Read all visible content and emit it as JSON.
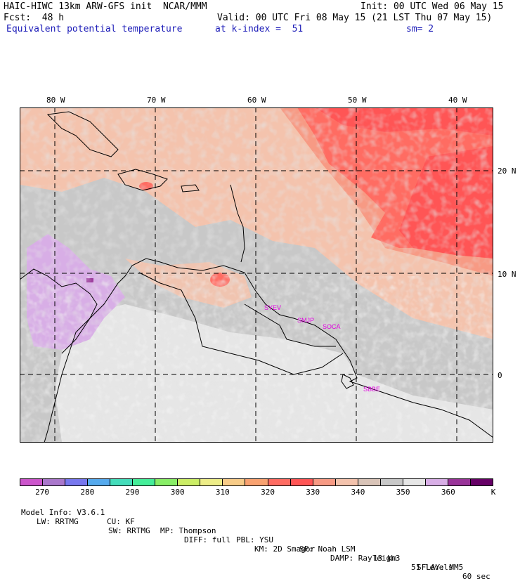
{
  "header": {
    "title_left": "HAIC-HIWC 13km ARW-GFS init  NCAR/MMM",
    "fcst": "Fcst:  48 h",
    "init": "Init: 00 UTC Wed 06 May 15",
    "valid": "Valid: 00 UTC Fri 08 May 15 (21 LST Thu 07 May 15)",
    "field": "Equivalent potential temperature",
    "level": "at k-index =  51",
    "smooth": "sm= 2"
  },
  "colors": {
    "field_label": "#1c1cb8",
    "city_label": "#e000e0",
    "land_base": "#e6e6e6",
    "ocean_base": "#bfbfbf",
    "warm_band": "#f4c3ad",
    "hot": "#ff6c62",
    "hotter": "#ff5555",
    "purple_region": "#d8aee6"
  },
  "axes": {
    "lon_labels": [
      "80 W",
      "70 W",
      "60 W",
      "50 W",
      "40 W"
    ],
    "lat_labels": [
      "20 N",
      "10 N",
      "0"
    ]
  },
  "map_labels": [
    {
      "name": "SYEV",
      "lon": -58.2,
      "lat": 6.5
    },
    {
      "name": "SMJP",
      "lon": -55.2,
      "lat": 5.5
    },
    {
      "name": "SOCA",
      "lon": -52.4,
      "lat": 4.8
    },
    {
      "name": "SBBE",
      "lon": -48.5,
      "lat": -1.4
    }
  ],
  "colorbar": {
    "colors": [
      "#cc55cc",
      "#aa77cc",
      "#7777ee",
      "#55aaee",
      "#44ddbb",
      "#44ee99",
      "#88ee66",
      "#ccee66",
      "#eeee88",
      "#f8cc88",
      "#f9a270",
      "#ff6c62",
      "#ff5555",
      "#f79a84",
      "#f4c3ad",
      "#d9c4b8",
      "#c8c8c8",
      "#e6e6e6",
      "#d8aee6",
      "#993399",
      "#660066"
    ],
    "labels": [
      "270",
      "280",
      "290",
      "300",
      "310",
      "320",
      "330",
      "340",
      "350",
      "360"
    ],
    "unit": "K"
  },
  "model_info": {
    "line1": [
      "Model Info: V3.6.1",
      "CU: KF",
      "MP: Thompson",
      "PBL: YSU",
      "SF: Noah LSM",
      "13 km",
      "51 levels",
      "60 sec"
    ],
    "line2": [
      "LW: RRTMG",
      "SW: RRTMG",
      "DIFF: full",
      "KM: 2D Smagor",
      "DAMP: Rayleigh3",
      "SFLAY: MM5"
    ]
  }
}
